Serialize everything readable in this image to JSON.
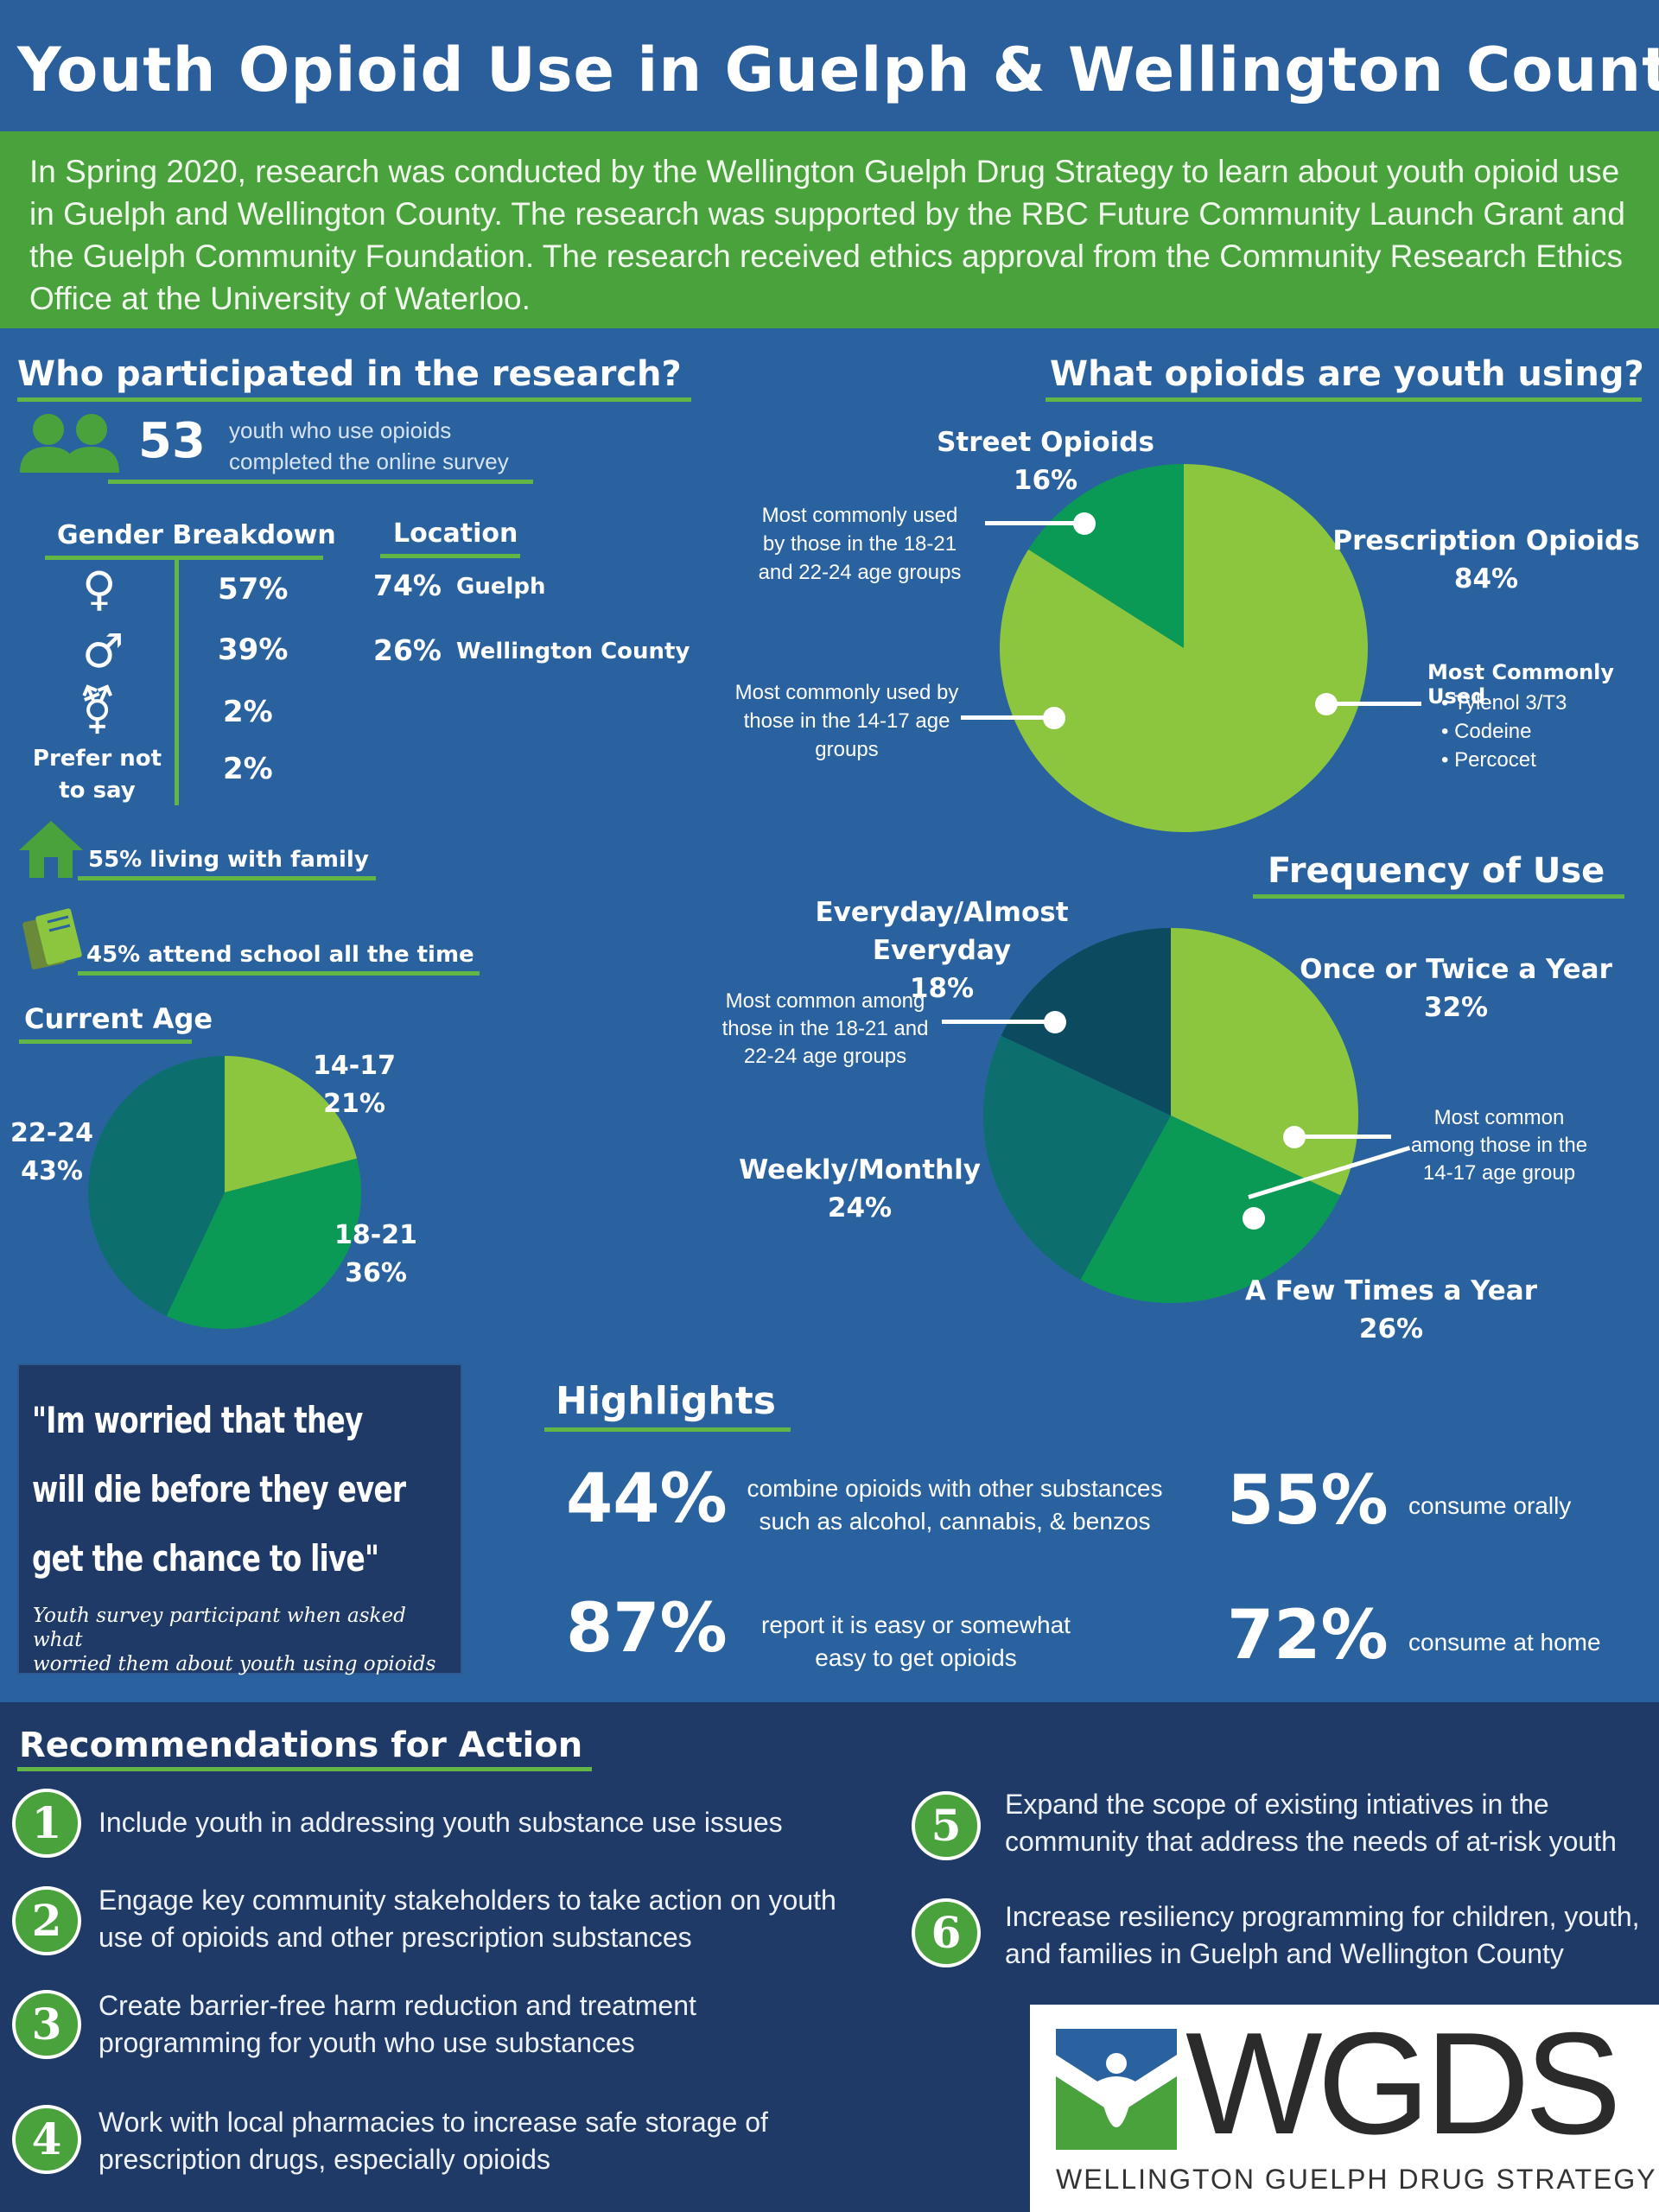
{
  "title": "Youth Opioid Use in Guelph & Wellington County",
  "intro": "In Spring 2020, research was conducted by the Wellington Guelph Drug Strategy to learn about youth opioid use in Guelph and Wellington County. The research was supported by the RBC Future Community Launch Grant and the Guelph Community Foundation. The research received ethics approval from the Community Research Ethics Office at the University of Waterloo.",
  "participants": {
    "heading": "Who participated in the research?",
    "count": "53",
    "count_text_1": "youth who use opioids",
    "count_text_2": "completed the online survey",
    "gender_heading": "Gender Breakdown",
    "gender": [
      {
        "icon": "female-icon",
        "symbol": "♀",
        "value": "57%"
      },
      {
        "icon": "male-icon",
        "symbol": "♂",
        "value": "39%"
      },
      {
        "icon": "transgender-icon",
        "symbol": "⚧",
        "value": "2%"
      },
      {
        "label_1": "Prefer not",
        "label_2": "to say",
        "value": "2%"
      }
    ],
    "location_heading": "Location",
    "locations": [
      {
        "value": "74%",
        "name": "Guelph"
      },
      {
        "value": "26%",
        "name": "Wellington County"
      }
    ],
    "family": "55% living with family",
    "school": "45% attend school all the time",
    "age_heading": "Current Age"
  },
  "opioids": {
    "heading": "What opioids are youth using?",
    "street_label": "Street Opioids",
    "street_value": "16%",
    "street_note_1": "Most commonly used",
    "street_note_2": "by those in the 18-21",
    "street_note_3": "and 22-24 age groups",
    "rx_label": "Prescription Opioids",
    "rx_value": "84%",
    "rx_note_1": "Most commonly used by",
    "rx_note_2": "those in the 14-17 age",
    "rx_note_3": "groups",
    "common_heading": "Most Commonly Used",
    "common_items": [
      "Tylenol 3/T3",
      "Codeine",
      "Percocet"
    ]
  },
  "frequency": {
    "heading": "Frequency of Use",
    "everyday_label": "Everyday/Almost Everyday",
    "everyday_value": "18%",
    "everyday_note_1": "Most common among",
    "everyday_note_2": "those in the 18-21 and",
    "everyday_note_3": "22-24 age groups",
    "yearly_label": "Once or Twice a Year",
    "yearly_value": "32%",
    "yearly_note_1": "Most common",
    "yearly_note_2": "among those in the",
    "yearly_note_3": "14-17 age group",
    "weekly_label": "Weekly/Monthly",
    "weekly_value": "24%",
    "few_label": "A Few Times a Year",
    "few_value": "26%"
  },
  "quote": {
    "line1": "\"Im worried that they",
    "line2": "will die before they ever",
    "line3": "get the chance to live\"",
    "caption_1": "Youth survey participant when asked what",
    "caption_2": "worried them about youth using opioids"
  },
  "highlights": {
    "heading": "Highlights",
    "items": [
      {
        "value": "44%",
        "text_1": "combine opioids with other substances",
        "text_2": "such as alcohol, cannabis, & benzos"
      },
      {
        "value": "55%",
        "text_1": "consume orally",
        "text_2": ""
      },
      {
        "value": "87%",
        "text_1": "report it is easy or somewhat",
        "text_2": "easy to get opioids"
      },
      {
        "value": "72%",
        "text_1": "consume at home",
        "text_2": ""
      }
    ]
  },
  "recommendations": {
    "heading": "Recommendations for Action",
    "items": [
      {
        "num": "1",
        "line1": "Include youth in addressing youth substance use issues",
        "line2": ""
      },
      {
        "num": "2",
        "line1": "Engage key community stakeholders to take action on youth",
        "line2": "use of opioids and other prescription substances"
      },
      {
        "num": "3",
        "line1": "Create barrier-free harm reduction and treatment",
        "line2": "programming for youth who use substances"
      },
      {
        "num": "4",
        "line1": "Work with local pharmacies to increase safe storage of",
        "line2": "prescription drugs, especially opioids"
      },
      {
        "num": "5",
        "line1": "Expand the scope of existing intiatives in the",
        "line2": "community that address the needs of at-risk youth"
      },
      {
        "num": "6",
        "line1": "Increase resiliency programming for children, youth,",
        "line2": "and families in Guelph and Wellington County"
      }
    ]
  },
  "logo": {
    "wordmark": "WGDS",
    "subtitle": "WELLINGTON GUELPH DRUG STRATEGY"
  },
  "colors": {
    "background": "#2a62a0",
    "banner_green": "#4aa23c",
    "light_green": "#8cc63f",
    "mid_green": "#0b9a55",
    "teal": "#0d6e6e",
    "navy": "#1f3a66",
    "dark_teal": "#0b4a5f"
  },
  "chart_data": [
    {
      "type": "pie",
      "categories": [
        "14-17",
        "18-21",
        "22-24"
      ],
      "values": [
        21,
        36,
        43
      ],
      "title": "Current Age"
    },
    {
      "type": "pie",
      "categories": [
        "Prescription Opioids",
        "Street Opioids"
      ],
      "values": [
        84,
        16
      ],
      "title": "What opioids are youth using?"
    },
    {
      "type": "pie",
      "categories": [
        "Once or Twice a Year",
        "A Few Times a Year",
        "Weekly/Monthly",
        "Everyday/Almost Everyday"
      ],
      "values": [
        32,
        26,
        24,
        18
      ],
      "title": "Frequency of Use"
    }
  ]
}
